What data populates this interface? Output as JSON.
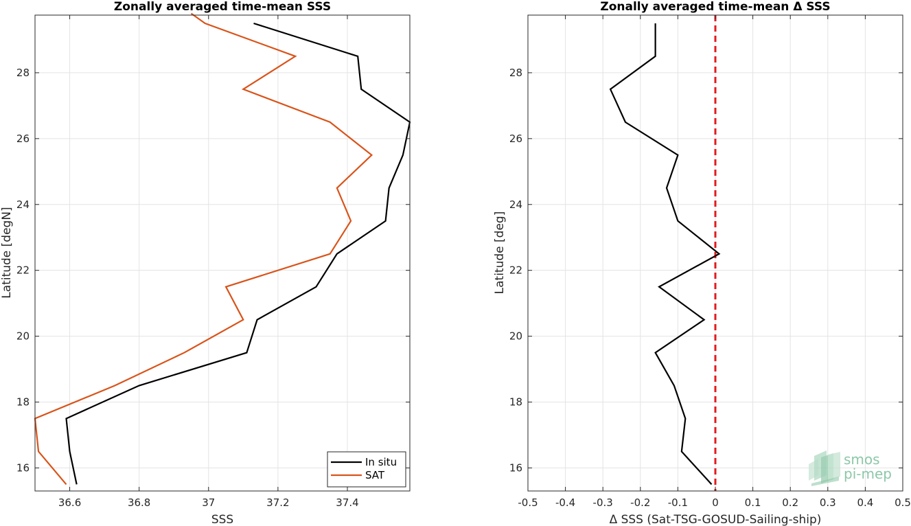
{
  "chart_data": [
    {
      "type": "line",
      "title": "Zonally averaged time-mean SSS",
      "xlabel": "SSS",
      "ylabel": "Latitude [degN]",
      "xlim": [
        36.5,
        37.58
      ],
      "ylim": [
        15.3,
        29.75
      ],
      "xticks": [
        "36.6",
        "36.8",
        "37",
        "37.2",
        "37.4"
      ],
      "yticks": [
        "16",
        "18",
        "20",
        "22",
        "24",
        "26",
        "28"
      ],
      "grid": true,
      "legend": "bottom-right",
      "series": [
        {
          "name": "In situ",
          "color": "#000000",
          "points": [
            {
              "x": 36.62,
              "y": 15.5
            },
            {
              "x": 36.6,
              "y": 16.5
            },
            {
              "x": 36.59,
              "y": 17.5
            },
            {
              "x": 36.8,
              "y": 18.5
            },
            {
              "x": 37.11,
              "y": 19.5
            },
            {
              "x": 37.14,
              "y": 20.5
            },
            {
              "x": 37.31,
              "y": 21.5
            },
            {
              "x": 37.37,
              "y": 22.5
            },
            {
              "x": 37.51,
              "y": 23.5
            },
            {
              "x": 37.52,
              "y": 24.5
            },
            {
              "x": 37.56,
              "y": 25.5
            },
            {
              "x": 37.58,
              "y": 26.5
            },
            {
              "x": 37.44,
              "y": 27.5
            },
            {
              "x": 37.43,
              "y": 28.5
            },
            {
              "x": 37.13,
              "y": 29.5
            }
          ]
        },
        {
          "name": "SAT",
          "color": "#d95319",
          "points": [
            {
              "x": 36.59,
              "y": 15.5
            },
            {
              "x": 36.51,
              "y": 16.5
            },
            {
              "x": 36.5,
              "y": 17.5
            },
            {
              "x": 36.73,
              "y": 18.5
            },
            {
              "x": 36.93,
              "y": 19.5
            },
            {
              "x": 37.1,
              "y": 20.5
            },
            {
              "x": 37.05,
              "y": 21.5
            },
            {
              "x": 37.35,
              "y": 22.5
            },
            {
              "x": 37.41,
              "y": 23.5
            },
            {
              "x": 37.37,
              "y": 24.5
            },
            {
              "x": 37.47,
              "y": 25.5
            },
            {
              "x": 37.35,
              "y": 26.5
            },
            {
              "x": 37.1,
              "y": 27.5
            },
            {
              "x": 37.25,
              "y": 28.5
            },
            {
              "x": 36.99,
              "y": 29.5
            },
            {
              "x": 36.95,
              "y": 29.8
            }
          ]
        }
      ]
    },
    {
      "type": "line",
      "title": "Zonally averaged time-mean Δ SSS",
      "xlabel": "Δ SSS (Sat-TSG-GOSUD-Sailing-ship)",
      "ylabel": "Latitude [deg]",
      "xlim": [
        -0.5,
        0.5
      ],
      "ylim": [
        15.3,
        29.75
      ],
      "xticks": [
        "-0.5",
        "-0.4",
        "-0.3",
        "-0.2",
        "-0.1",
        "0",
        "0.1",
        "0.2",
        "0.3",
        "0.4",
        "0.5"
      ],
      "yticks": [
        "16",
        "18",
        "20",
        "22",
        "24",
        "26",
        "28"
      ],
      "grid": true,
      "reference_line": {
        "x": 0,
        "color": "#e31a1c",
        "style": "dashed"
      },
      "series": [
        {
          "color": "#000000",
          "points": [
            {
              "x": -0.01,
              "y": 15.5
            },
            {
              "x": -0.09,
              "y": 16.5
            },
            {
              "x": -0.08,
              "y": 17.5
            },
            {
              "x": -0.11,
              "y": 18.5
            },
            {
              "x": -0.16,
              "y": 19.5
            },
            {
              "x": -0.03,
              "y": 20.5
            },
            {
              "x": -0.15,
              "y": 21.5
            },
            {
              "x": 0.01,
              "y": 22.5
            },
            {
              "x": -0.1,
              "y": 23.5
            },
            {
              "x": -0.13,
              "y": 24.5
            },
            {
              "x": -0.1,
              "y": 25.5
            },
            {
              "x": -0.24,
              "y": 26.5
            },
            {
              "x": -0.28,
              "y": 27.5
            },
            {
              "x": -0.16,
              "y": 28.5
            },
            {
              "x": -0.16,
              "y": 29.5
            }
          ]
        }
      ]
    }
  ],
  "logo": {
    "line1": "smos",
    "line2": "pi-mep",
    "color": "#8cc7a8"
  }
}
